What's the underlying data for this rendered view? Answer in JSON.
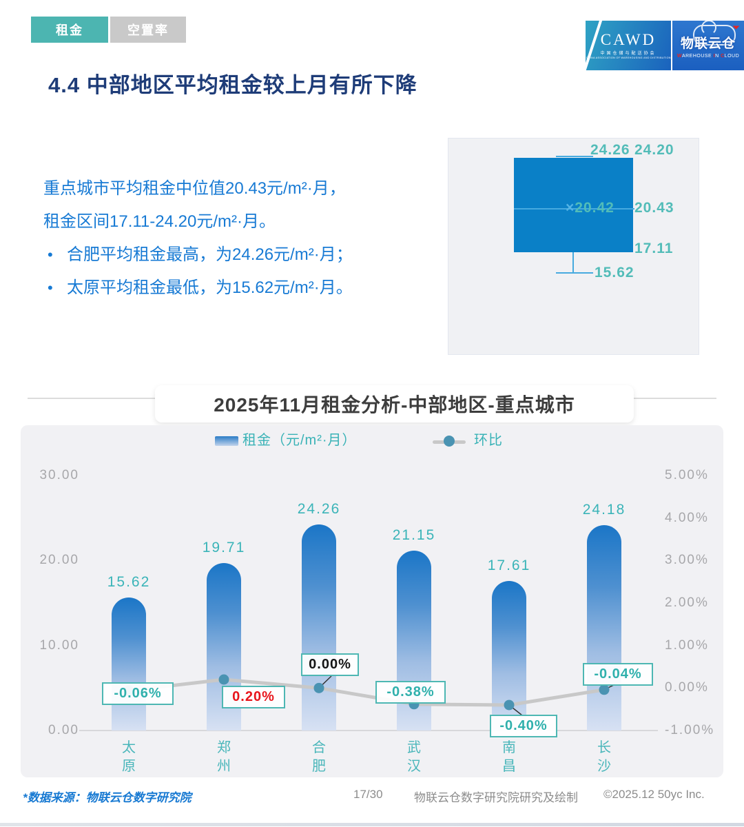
{
  "tabs": {
    "rent": "租金",
    "vacancy": "空置率"
  },
  "header_logo": {
    "cawd": "CAWD",
    "cawd_cn": "中国仓储与配送协会",
    "cawd_en": "CHINA ASSOCIATION OF WAREHOUSING AND DISTRIBUTION",
    "wic_cn": "物联云仓",
    "wic_en": {
      "w": "W",
      "arehouse": "AREHOUSE",
      "i": "I",
      "n": "N",
      "c": "C",
      "loud": "LOUD"
    }
  },
  "page_title": "4.4 中部地区平均租金较上月有所下降",
  "summary": {
    "line1": "重点城市平均租金中位值20.43元/m²·月，",
    "line2": "租金区间17.11-24.20元/m²·月。",
    "bullets": [
      "合肥平均租金最高，为24.26元/m²·月；",
      "太原平均租金最低，为15.62元/m²·月。"
    ]
  },
  "boxplot": {
    "labels": {
      "max": "24.26",
      "q3": "24.20",
      "mean_marker": "×",
      "mean": "20.42",
      "median": "20.43",
      "q1": "17.11",
      "min": "15.62"
    }
  },
  "chart_title": "2025年11月租金分析-中部地区-重点城市",
  "chart_data": {
    "type": "bar",
    "title": "2025年11月租金分析-中部地区-重点城市",
    "categories": [
      "太原",
      "郑州",
      "合肥",
      "武汉",
      "南昌",
      "长沙"
    ],
    "series": [
      {
        "name": "租金（元/m²·月）",
        "type": "bar",
        "values": [
          15.62,
          19.71,
          24.26,
          21.15,
          17.61,
          24.18
        ]
      },
      {
        "name": "环比",
        "type": "line",
        "unit": "%",
        "values": [
          -0.06,
          0.2,
          0.0,
          -0.38,
          -0.4,
          -0.04
        ]
      }
    ],
    "bar_labels": [
      "15.62",
      "19.71",
      "24.26",
      "21.15",
      "17.61",
      "24.18"
    ],
    "line_labels": [
      "-0.06%",
      "0.20%",
      "0.00%",
      "-0.38%",
      "-0.40%",
      "-0.04%"
    ],
    "line_label_colors": [
      "teal",
      "red",
      "black",
      "teal",
      "teal",
      "teal"
    ],
    "left_axis": {
      "min": 0,
      "max": 30,
      "ticks": [
        "30.00",
        "20.00",
        "10.00",
        "0.00"
      ]
    },
    "right_axis": {
      "min": -1,
      "max": 5,
      "ticks": [
        "5.00%",
        "4.00%",
        "3.00%",
        "2.00%",
        "1.00%",
        "0.00%",
        "-1.00%"
      ]
    },
    "legend_position": "top",
    "grid": false
  },
  "footer": {
    "source": "*数据来源：物联云仓数字研究院",
    "page": "17/30",
    "credit": "物联云仓数字研究院研究及绘制",
    "copyright": "©2025.12 50yc Inc."
  },
  "colors": {
    "accent_teal": "#4cb5b1",
    "label_teal": "#3ab4b8",
    "bar_blue_top": "#1b76c7",
    "bar_blue_bottom": "#d7e1f3",
    "box_blue": "#0a80c7",
    "title_navy": "#1e3c78",
    "body_blue": "#177ad4",
    "negative_red": "#e8151c",
    "line_gray": "#c8c8c8",
    "dot_blue": "#4a93b2"
  }
}
